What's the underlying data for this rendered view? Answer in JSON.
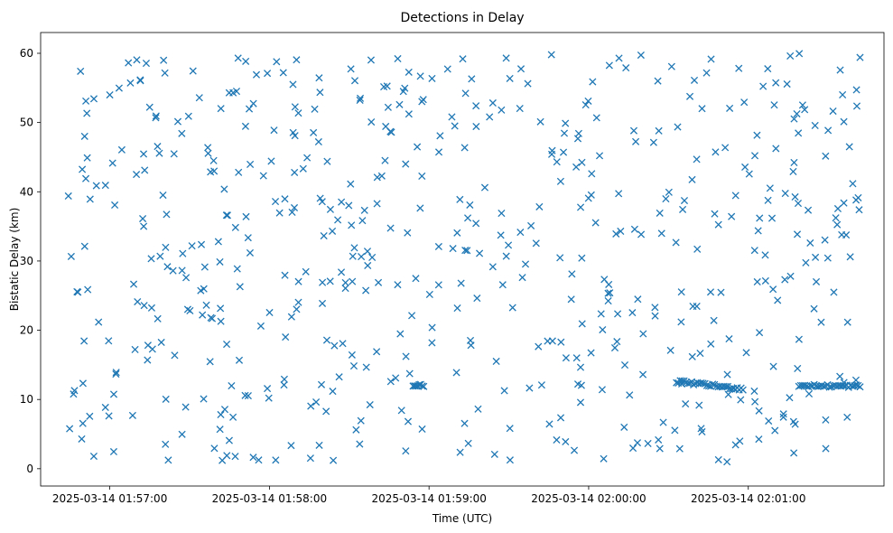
{
  "chart_data": {
    "type": "scatter",
    "title": "Detections in Delay",
    "xlabel": "Time (UTC)",
    "ylabel": "Bistatic Delay (km)",
    "marker": "x",
    "color": "#1f77b4",
    "grid": false,
    "xlim": [
      "2025-03-14T01:56:34",
      "2025-03-14T02:01:51"
    ],
    "ylim": [
      -2.5,
      63
    ],
    "xticks": [
      "2025-03-14 01:57:00",
      "2025-03-14 01:58:00",
      "2025-03-14 01:59:00",
      "2025-03-14 02:00:00",
      "2025-03-14 02:01:00"
    ],
    "yticks": [
      0,
      10,
      20,
      30,
      40,
      50,
      60
    ],
    "x_range": [
      "2025-03-14T01:56:44",
      "2025-03-14T02:01:42"
    ],
    "y_range": [
      1,
      60
    ],
    "tracks": [
      {
        "x": [
          "2025-03-14T01:58:54",
          "2025-03-14T01:58:58"
        ],
        "y": [
          12.0,
          12.0
        ]
      },
      {
        "x": [
          "2025-03-14T02:00:33",
          "2025-03-14T02:00:58"
        ],
        "y": [
          12.6,
          11.5
        ]
      },
      {
        "x": [
          "2025-03-14T02:01:19",
          "2025-03-14T02:01:42"
        ],
        "y": [
          12.0,
          11.9
        ]
      }
    ],
    "sample_points": [
      {
        "x": "2025-03-14T01:56:49",
        "y": 57.4
      },
      {
        "x": "2025-03-14T01:56:51",
        "y": 53.1
      },
      {
        "x": "2025-03-14T01:56:54",
        "y": 1.8
      },
      {
        "x": "2025-03-14T01:56:48",
        "y": 25.5
      },
      {
        "x": "2025-03-14T01:57:10",
        "y": 42.5
      },
      {
        "x": "2025-03-14T01:57:44",
        "y": 1.9
      },
      {
        "x": "2025-03-14T01:58:24",
        "y": 1.2
      },
      {
        "x": "2025-03-14T01:59:16",
        "y": 56.3
      },
      {
        "x": "2025-03-14T01:59:46",
        "y": 59.8
      },
      {
        "x": "2025-03-14T02:00:14",
        "y": 57.9
      },
      {
        "x": "2025-03-14T02:00:26",
        "y": 56.0
      },
      {
        "x": "2025-03-14T02:00:52",
        "y": 1.0
      },
      {
        "x": "2025-03-14T02:01:17",
        "y": 6.8
      },
      {
        "x": "2025-03-14T02:01:38",
        "y": 46.5
      },
      {
        "x": "2025-03-14T02:01:42",
        "y": 59.4
      }
    ]
  }
}
